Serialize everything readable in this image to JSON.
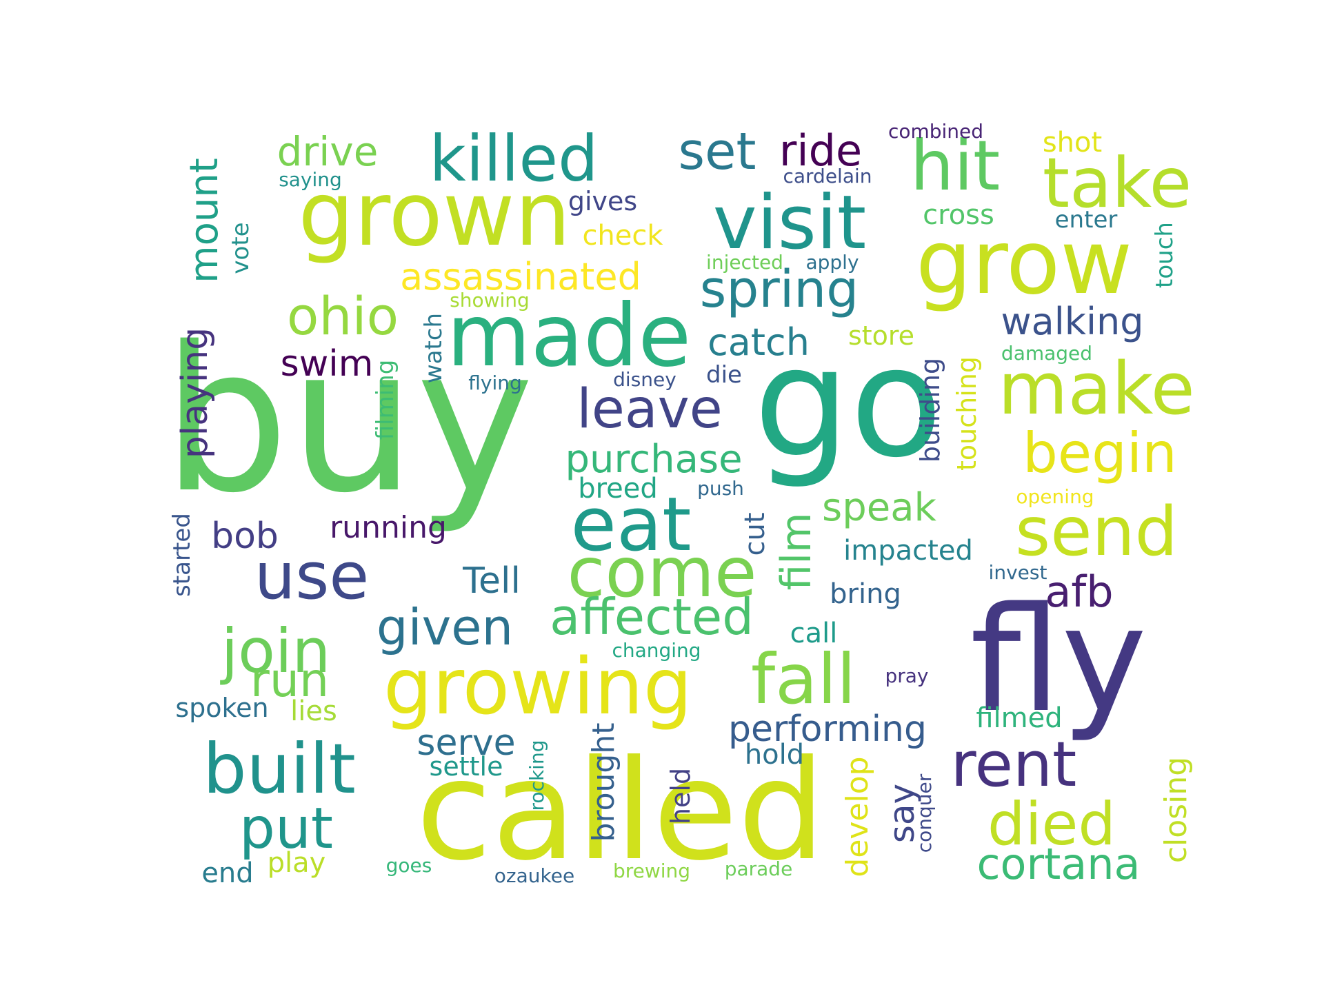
{
  "word_cloud": {
    "words": [
      {
        "text": "buy",
        "color": "#5ec962",
        "size": 1.0
      },
      {
        "text": "go",
        "color": "#22a884",
        "size": 0.85
      },
      {
        "text": "fly",
        "color": "#443983",
        "size": 0.8
      },
      {
        "text": "called",
        "color": "#d0e11c",
        "size": 0.85
      },
      {
        "text": "grown",
        "color": "#c2df23",
        "size": 0.6
      },
      {
        "text": "grow",
        "color": "#c8e020",
        "size": 0.6
      },
      {
        "text": "made",
        "color": "#2ab07f",
        "size": 0.55
      },
      {
        "text": "visit",
        "color": "#1f948c",
        "size": 0.5
      },
      {
        "text": "growing",
        "color": "#e5e419",
        "size": 0.5
      },
      {
        "text": "eat",
        "color": "#1f9a8a",
        "size": 0.5
      },
      {
        "text": "make",
        "color": "#bade28",
        "size": 0.45
      },
      {
        "text": "killed",
        "color": "#1f968b",
        "size": 0.4
      },
      {
        "text": "fall",
        "color": "#86d549",
        "size": 0.45
      },
      {
        "text": "come",
        "color": "#7ad151",
        "size": 0.45
      },
      {
        "text": "send",
        "color": "#c5e021",
        "size": 0.45
      },
      {
        "text": "take",
        "color": "#b5de2b",
        "size": 0.45
      },
      {
        "text": "hit",
        "color": "#5ec962",
        "size": 0.45
      },
      {
        "text": "built",
        "color": "#20928c",
        "size": 0.45
      },
      {
        "text": "rent",
        "color": "#46327e",
        "size": 0.4
      },
      {
        "text": "use",
        "color": "#3e4989",
        "size": 0.4
      },
      {
        "text": "died",
        "color": "#c0df25",
        "size": 0.4
      },
      {
        "text": "join",
        "color": "#6ccd5a",
        "size": 0.4
      },
      {
        "text": "put",
        "color": "#1f958b",
        "size": 0.4
      },
      {
        "text": "begin",
        "color": "#e7e419",
        "size": 0.4
      },
      {
        "text": "leave",
        "color": "#414487",
        "size": 0.38
      },
      {
        "text": "spring",
        "color": "#26828e",
        "size": 0.36
      },
      {
        "text": "ohio",
        "color": "#95d840",
        "size": 0.36
      },
      {
        "text": "set",
        "color": "#2a788e",
        "size": 0.34
      },
      {
        "text": "affected",
        "color": "#4ac16d",
        "size": 0.34
      },
      {
        "text": "given",
        "color": "#2c728e",
        "size": 0.34
      },
      {
        "text": "cortana",
        "color": "#3bbb75",
        "size": 0.32
      },
      {
        "text": "run",
        "color": "#73d056",
        "size": 0.3
      },
      {
        "text": "afb",
        "color": "#481f70",
        "size": 0.3
      },
      {
        "text": "ride",
        "color": "#440154",
        "size": 0.28
      },
      {
        "text": "drive",
        "color": "#7ad151",
        "size": 0.28
      },
      {
        "text": "purchase",
        "color": "#35b779",
        "size": 0.28
      },
      {
        "text": "film",
        "color": "#52c569",
        "size": 0.28
      },
      {
        "text": "assassinated",
        "color": "#fde725",
        "size": 0.28
      },
      {
        "text": "performing",
        "color": "#365c8d",
        "size": 0.26
      },
      {
        "text": "speak",
        "color": "#6ccd5a",
        "size": 0.26
      },
      {
        "text": "walking",
        "color": "#3b528b",
        "size": 0.26
      },
      {
        "text": "catch",
        "color": "#277f8e",
        "size": 0.26
      },
      {
        "text": "mount",
        "color": "#1fa088",
        "size": 0.26
      },
      {
        "text": "serve",
        "color": "#2e6f8e",
        "size": 0.26
      },
      {
        "text": "playing",
        "color": "#46337e",
        "size": 0.26
      },
      {
        "text": "Tell",
        "color": "#2d708e",
        "size": 0.26
      },
      {
        "text": "swim",
        "color": "#440154",
        "size": 0.24
      },
      {
        "text": "bob",
        "color": "#433e85",
        "size": 0.24
      },
      {
        "text": "say",
        "color": "#3f4788",
        "size": 0.24
      },
      {
        "text": "closing",
        "color": "#c0df25",
        "size": 0.22
      },
      {
        "text": "brought",
        "color": "#35608d",
        "size": 0.22
      },
      {
        "text": "running",
        "color": "#48186a",
        "size": 0.22
      },
      {
        "text": "develop",
        "color": "#dfe318",
        "size": 0.22
      },
      {
        "text": "cross",
        "color": "#52c569",
        "size": 0.2
      },
      {
        "text": "shot",
        "color": "#e2e418",
        "size": 0.2
      },
      {
        "text": "lies",
        "color": "#a5db36",
        "size": 0.2
      },
      {
        "text": "breed",
        "color": "#21a685",
        "size": 0.2
      },
      {
        "text": "hold",
        "color": "#2c718e",
        "size": 0.2
      },
      {
        "text": "play",
        "color": "#bade28",
        "size": 0.2
      },
      {
        "text": "end",
        "color": "#287c8e",
        "size": 0.2
      },
      {
        "text": "cut",
        "color": "#355f8d",
        "size": 0.2
      },
      {
        "text": "check",
        "color": "#f1e51d",
        "size": 0.2
      },
      {
        "text": "bring",
        "color": "#33638d",
        "size": 0.2
      },
      {
        "text": "call",
        "color": "#1e9b8a",
        "size": 0.2
      },
      {
        "text": "filmed",
        "color": "#2eb37c",
        "size": 0.2
      },
      {
        "text": "impacted",
        "color": "#25838e",
        "size": 0.2
      },
      {
        "text": "gives",
        "color": "#404688",
        "size": 0.19
      },
      {
        "text": "settle",
        "color": "#1f988b",
        "size": 0.19
      },
      {
        "text": "spoken",
        "color": "#2d708e",
        "size": 0.19
      },
      {
        "text": "store",
        "color": "#b5de2b",
        "size": 0.19
      },
      {
        "text": "building",
        "color": "#3e4c8a",
        "size": 0.19
      },
      {
        "text": "touching",
        "color": "#d5e21a",
        "size": 0.19
      },
      {
        "text": "held",
        "color": "#424186",
        "size": 0.19
      },
      {
        "text": "started",
        "color": "#39558c",
        "size": 0.18
      },
      {
        "text": "vote",
        "color": "#21918c",
        "size": 0.18
      },
      {
        "text": "watch",
        "color": "#2a788e",
        "size": 0.18
      },
      {
        "text": "filming",
        "color": "#3dbc74",
        "size": 0.18
      },
      {
        "text": "die",
        "color": "#3b528b",
        "size": 0.18
      },
      {
        "text": "touch",
        "color": "#1fa188",
        "size": 0.18
      },
      {
        "text": "enter",
        "color": "#2a788e",
        "size": 0.18
      },
      {
        "text": "combined",
        "color": "#482475",
        "size": 0.15
      },
      {
        "text": "cardelain",
        "color": "#3d4e8a",
        "size": 0.15
      },
      {
        "text": "saying",
        "color": "#21918c",
        "size": 0.15
      },
      {
        "text": "injected",
        "color": "#6ece58",
        "size": 0.15
      },
      {
        "text": "apply",
        "color": "#2d708e",
        "size": 0.15
      },
      {
        "text": "showing",
        "color": "#a8db34",
        "size": 0.15
      },
      {
        "text": "flying",
        "color": "#2c728e",
        "size": 0.15
      },
      {
        "text": "disney",
        "color": "#3b528b",
        "size": 0.15
      },
      {
        "text": "push",
        "color": "#31688e",
        "size": 0.15
      },
      {
        "text": "damaged",
        "color": "#4ac16d",
        "size": 0.15
      },
      {
        "text": "opening",
        "color": "#f1e51d",
        "size": 0.15
      },
      {
        "text": "invest",
        "color": "#31688e",
        "size": 0.15
      },
      {
        "text": "changing",
        "color": "#22a884",
        "size": 0.15
      },
      {
        "text": "pray",
        "color": "#46327e",
        "size": 0.15
      },
      {
        "text": "rocking",
        "color": "#1f988b",
        "size": 0.15
      },
      {
        "text": "conquer",
        "color": "#3e4989",
        "size": 0.15
      },
      {
        "text": "goes",
        "color": "#35b779",
        "size": 0.15
      },
      {
        "text": "ozaukee",
        "color": "#33638d",
        "size": 0.15
      },
      {
        "text": "brewing",
        "color": "#8fd744",
        "size": 0.15
      },
      {
        "text": "parade",
        "color": "#6ccd5a",
        "size": 0.15
      }
    ]
  }
}
